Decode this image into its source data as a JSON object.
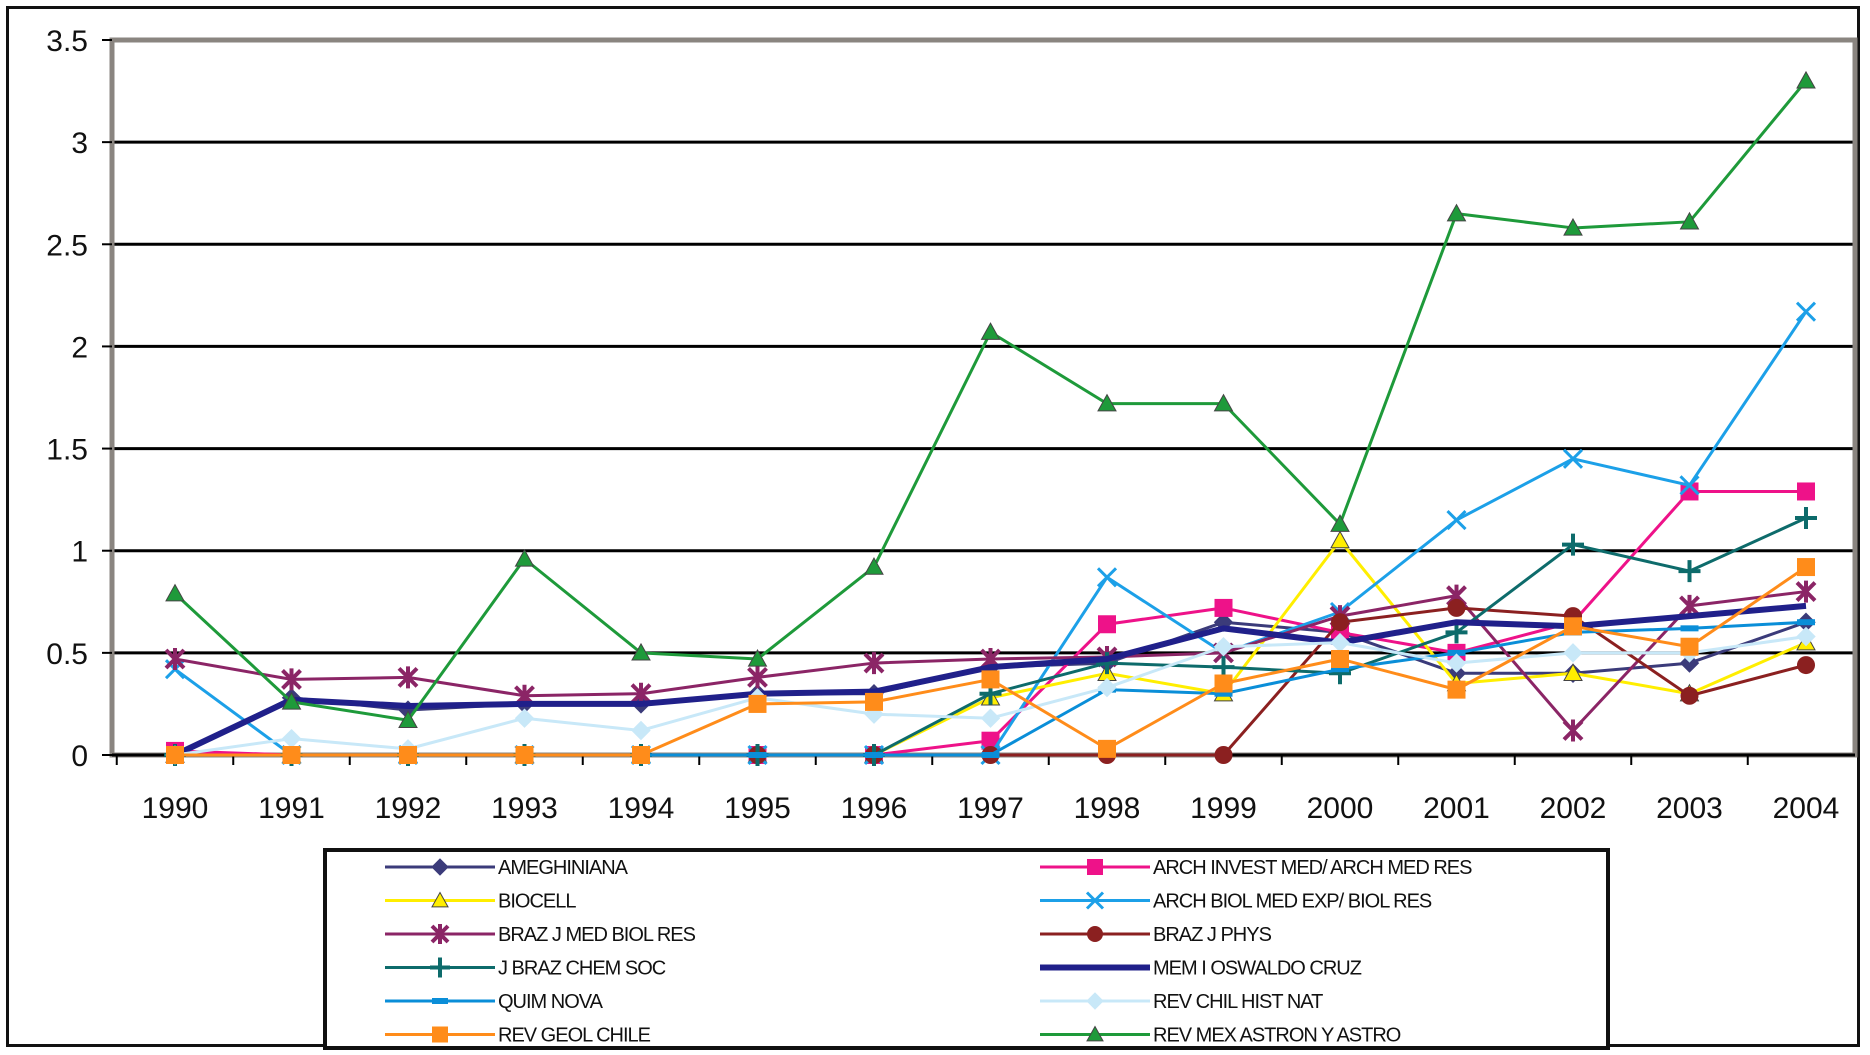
{
  "chart_data": {
    "type": "line",
    "title": "",
    "xlabel": "",
    "ylabel": "",
    "ylim": [
      0,
      3.5
    ],
    "yticks": [
      "0",
      "0.5",
      "1",
      "1.5",
      "2",
      "2.5",
      "3",
      "3.5"
    ],
    "ytick_values": [
      0,
      0.5,
      1,
      1.5,
      2,
      2.5,
      3,
      3.5
    ],
    "categories": [
      "1990",
      "1991",
      "1992",
      "1993",
      "1994",
      "1995",
      "1996",
      "1997",
      "1998",
      "1999",
      "2000",
      "2001",
      "2002",
      "2003",
      "2004"
    ],
    "grid": "horizontal",
    "legend_position": "bottom",
    "series": [
      {
        "name": "AMEGHINIANA",
        "color": "#3b3b7a",
        "marker": "diamond",
        "width": 3,
        "values": [
          0,
          0.28,
          0.22,
          0.25,
          0.25,
          0.3,
          0.3,
          0.43,
          0.45,
          0.65,
          0.6,
          0.4,
          0.4,
          0.45,
          0.65
        ]
      },
      {
        "name": "ARCH INVEST MED/ ARCH MED RES",
        "color": "#ee1289",
        "marker": "square",
        "width": 3,
        "values": [
          0.02,
          0,
          0,
          0,
          0,
          0,
          0,
          0.07,
          0.64,
          0.72,
          0.6,
          0.5,
          0.65,
          1.29,
          1.29
        ]
      },
      {
        "name": "BIOCELL",
        "color": "#ffee00",
        "marker": "triangle",
        "width": 3,
        "values": [
          0,
          0,
          0,
          0,
          0,
          0,
          0,
          0.28,
          0.4,
          0.3,
          1.05,
          0.35,
          0.4,
          0.3,
          0.55
        ]
      },
      {
        "name": "ARCH BIOL MED EXP/ BIOL RES",
        "color": "#1ca0e8",
        "marker": "x",
        "width": 3,
        "values": [
          0.42,
          0,
          0,
          0,
          0,
          0,
          0,
          0,
          0.87,
          0.5,
          0.7,
          1.15,
          1.45,
          1.32,
          2.17
        ]
      },
      {
        "name": "BRAZ J MED BIOL RES",
        "color": "#8b2566",
        "marker": "star",
        "width": 3,
        "values": [
          0.47,
          0.37,
          0.38,
          0.29,
          0.3,
          0.38,
          0.45,
          0.47,
          0.48,
          0.5,
          0.68,
          0.78,
          0.12,
          0.73,
          0.8
        ]
      },
      {
        "name": "BRAZ J PHYS",
        "color": "#8b2020",
        "marker": "circle",
        "width": 3,
        "values": [
          0,
          0,
          0,
          0,
          0,
          0,
          0,
          0,
          0,
          0,
          0.65,
          0.72,
          0.68,
          0.29,
          0.44
        ]
      },
      {
        "name": "J BRAZ CHEM SOC",
        "color": "#0d6b6b",
        "marker": "plus",
        "width": 3,
        "values": [
          0,
          0,
          0,
          0,
          0,
          0,
          0,
          0.3,
          0.45,
          0.43,
          0.4,
          0.6,
          1.03,
          0.9,
          1.16
        ]
      },
      {
        "name": "MEM I OSWALDO CRUZ",
        "color": "#20208a",
        "marker": "none",
        "width": 6,
        "values": [
          0,
          0.27,
          0.24,
          0.25,
          0.25,
          0.3,
          0.31,
          0.43,
          0.47,
          0.62,
          0.55,
          0.65,
          0.63,
          0.68,
          0.73
        ]
      },
      {
        "name": "QUIM NOVA",
        "color": "#0a8ed8",
        "marker": "dash",
        "width": 3,
        "values": [
          0,
          0,
          0,
          0,
          0,
          0,
          0,
          0,
          0.32,
          0.3,
          0.42,
          0.5,
          0.6,
          0.62,
          0.65
        ]
      },
      {
        "name": "REV CHIL HIST NAT",
        "color": "#c8e8f8",
        "marker": "diamond",
        "width": 3,
        "values": [
          0,
          0.08,
          0.03,
          0.18,
          0.12,
          0.28,
          0.2,
          0.18,
          0.33,
          0.53,
          0.55,
          0.45,
          0.5,
          0.5,
          0.58
        ]
      },
      {
        "name": "REV GEOL CHILE",
        "color": "#ff8c1a",
        "marker": "square",
        "width": 3,
        "values": [
          0,
          0,
          0,
          0,
          0,
          0.25,
          0.26,
          0.37,
          0.03,
          0.35,
          0.47,
          0.32,
          0.63,
          0.53,
          0.92
        ]
      },
      {
        "name": "REV MEX ASTRON Y ASTRO",
        "color": "#1e9a3a",
        "marker": "triangle",
        "width": 3,
        "values": [
          0.79,
          0.26,
          0.17,
          0.96,
          0.5,
          0.47,
          0.92,
          2.07,
          1.72,
          1.72,
          1.13,
          2.65,
          2.58,
          2.61,
          3.3
        ]
      }
    ]
  }
}
